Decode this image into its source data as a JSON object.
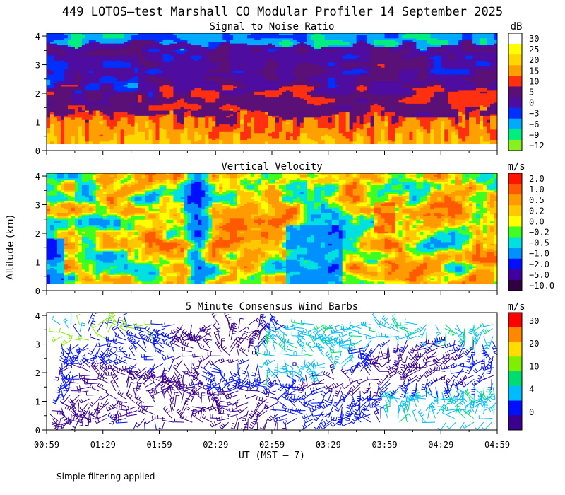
{
  "figure": {
    "title": "449 LOTOS–test Marshall CO Modular Profiler 14 September 2025",
    "ylabel": "Altitude (km)",
    "xlabel": "UT  (MST – 7)",
    "x_ticks": [
      "00:59",
      "01:29",
      "01:59",
      "02:29",
      "02:59",
      "03:29",
      "03:59",
      "04:29",
      "04:59"
    ],
    "y_ticks": [
      "0",
      "1",
      "2",
      "3",
      "4"
    ],
    "footnote": "Simple filtering applied"
  },
  "chart_data": [
    {
      "type": "heatmap",
      "title": "Signal to Noise Ratio",
      "x_range": [
        "00:59",
        "04:59"
      ],
      "ylim": [
        0,
        4.1
      ],
      "data_bottom_km": 0.25,
      "colorbar": {
        "unit": "dB",
        "labels": [
          "30",
          "25",
          "20",
          "15",
          "10",
          "5",
          "0",
          "−3",
          "−6",
          "−9",
          "−12"
        ],
        "colors": [
          "#ffffff",
          "#ffff00",
          "#ffd700",
          "#ffa000",
          "#ff3010",
          "#5a1077",
          "#4e0ca0",
          "#0030ff",
          "#00aaff",
          "#00ee80",
          "#88f020"
        ]
      },
      "description_levels": [
        {
          "altitude_range_km": [
            0.25,
            1.3
          ],
          "snr_db": 15
        },
        {
          "altitude_range_km": [
            1.3,
            2.0
          ],
          "snr_db": 8
        },
        {
          "altitude_range_km": [
            2.0,
            3.8
          ],
          "snr_db": 2
        },
        {
          "altitude_range_km": [
            3.8,
            4.1
          ],
          "snr_db": -6
        }
      ]
    },
    {
      "type": "heatmap",
      "title": "Vertical Velocity",
      "x_range": [
        "00:59",
        "04:59"
      ],
      "ylim": [
        0,
        4.1
      ],
      "data_bottom_km": 0.25,
      "colorbar": {
        "unit": "m/s",
        "labels": [
          "2.0",
          "1.0",
          "0.5",
          "0.2",
          "0.0",
          "−0.2",
          "−0.5",
          "−1.0",
          "−2.0",
          "−5.0",
          "−10.0"
        ],
        "colors": [
          "#ff1400",
          "#ff5a00",
          "#ff9a00",
          "#ffc800",
          "#ffff00",
          "#40ff20",
          "#00e0e0",
          "#0090ff",
          "#0010ff",
          "#4000a0",
          "#300040"
        ]
      }
    },
    {
      "type": "scatter",
      "title": "5 Minute Consensus Wind Barbs",
      "x_range": [
        "00:59",
        "04:59"
      ],
      "ylim": [
        0,
        4.1
      ],
      "interval_minutes": 5,
      "colorbar": {
        "unit": "m/s",
        "labels": [
          "30",
          "20",
          "10",
          "4",
          "0"
        ],
        "colors": [
          "#ff0000",
          "#ff8800",
          "#ffdd00",
          "#80ee00",
          "#00dd70",
          "#00bbff",
          "#0010ff",
          "#3a0090"
        ]
      }
    }
  ]
}
